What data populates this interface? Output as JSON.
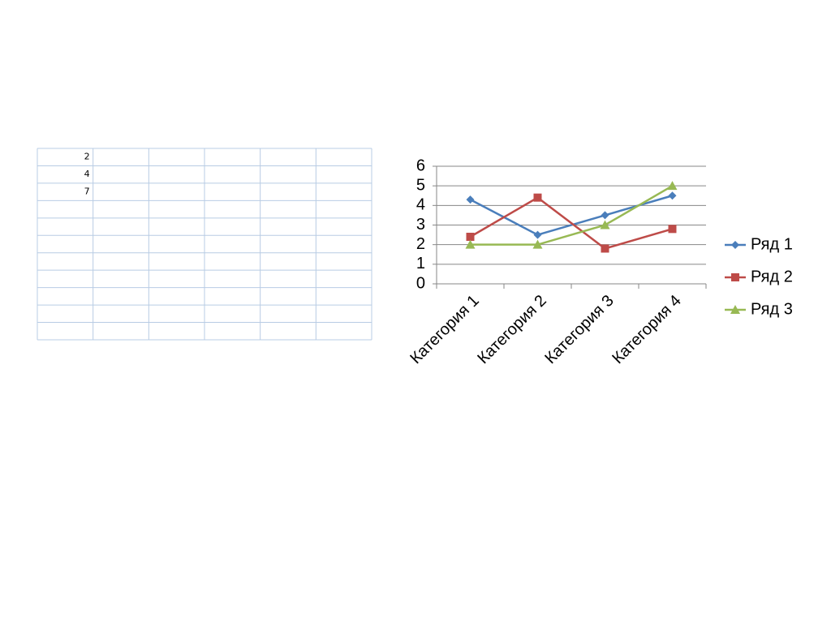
{
  "table": {
    "rows": [
      [
        2
      ],
      [
        4
      ],
      [
        7
      ]
    ]
  },
  "chart_data": {
    "type": "line",
    "categories": [
      "Категория 1",
      "Категория 2",
      "Категория 3",
      "Категория 4"
    ],
    "series": [
      {
        "name": "Ряд 1",
        "color": "#4a7ebb",
        "marker": "diamond",
        "values": [
          4.3,
          2.5,
          3.5,
          4.5
        ]
      },
      {
        "name": "Ряд 2",
        "color": "#be4b48",
        "marker": "square",
        "values": [
          2.4,
          4.4,
          1.8,
          2.8
        ]
      },
      {
        "name": "Ряд 3",
        "color": "#98b954",
        "marker": "triangle",
        "values": [
          2,
          2,
          3,
          5
        ]
      }
    ],
    "ylim": [
      0,
      6
    ],
    "yticks": [
      0,
      1,
      2,
      3,
      4,
      5,
      6
    ],
    "grid": true,
    "legend": "right"
  }
}
